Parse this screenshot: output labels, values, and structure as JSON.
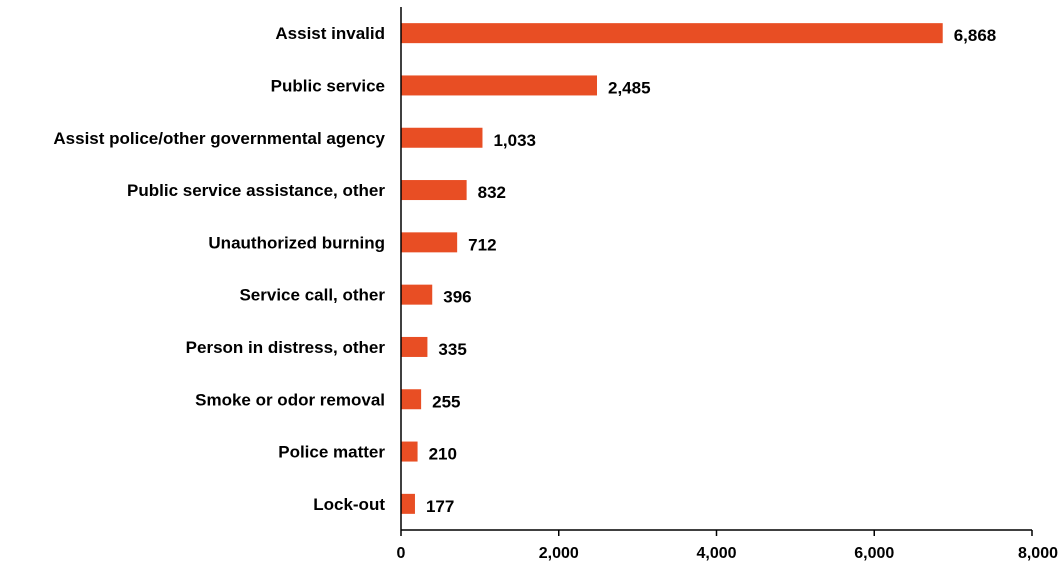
{
  "chart_data": {
    "type": "bar",
    "orientation": "horizontal",
    "categories": [
      "Assist invalid",
      "Public service",
      "Assist police/other governmental agency",
      "Public service assistance, other",
      "Unauthorized burning",
      "Service call, other",
      "Person in distress, other",
      "Smoke or odor removal",
      "Police matter",
      "Lock-out"
    ],
    "values": [
      6868,
      2485,
      1033,
      832,
      712,
      396,
      335,
      255,
      210,
      177
    ],
    "data_labels": [
      "6,868",
      "2,485",
      "1,033",
      "832",
      "712",
      "396",
      "335",
      "255",
      "210",
      "177"
    ],
    "xlim": [
      0,
      8000
    ],
    "xticks": [
      0,
      2000,
      4000,
      6000,
      8000
    ],
    "xtick_labels": [
      "0",
      "2,000",
      "4,000",
      "6,000",
      "8,000"
    ],
    "title": "",
    "xlabel": "",
    "ylabel": "",
    "grid": false,
    "legend": "none",
    "bar_color": "#E84E24"
  }
}
